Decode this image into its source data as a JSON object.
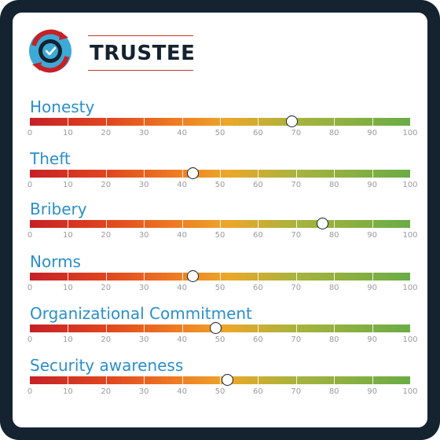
{
  "brand": {
    "name": "TRUSTEE",
    "icon": "checkmark-cycle-icon"
  },
  "scale": {
    "min": 0,
    "max": 100,
    "ticks": [
      "0",
      "10",
      "20",
      "30",
      "40",
      "50",
      "60",
      "70",
      "80",
      "90",
      "100"
    ]
  },
  "metrics": [
    {
      "label": "Honesty",
      "value": 69
    },
    {
      "label": "Theft",
      "value": 43
    },
    {
      "label": "Bribery",
      "value": 77
    },
    {
      "label": "Norms",
      "value": 43
    },
    {
      "label": "Organizational Commitment",
      "value": 49
    },
    {
      "label": "Security awareness",
      "value": 52
    }
  ],
  "colors": {
    "frame": "#14232f",
    "label": "#2a8fc9",
    "gradient": [
      "#c62127",
      "#eca72a",
      "#6aac46"
    ]
  }
}
